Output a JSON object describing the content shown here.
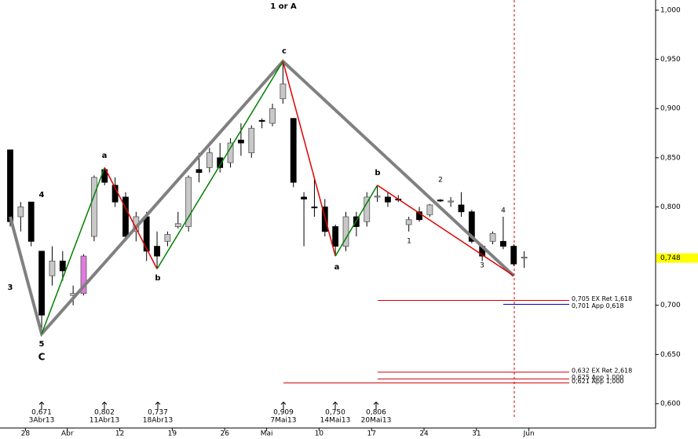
{
  "chart_data": {
    "type": "candlestick",
    "title": "1 or A",
    "categories": [
      null,
      "28",
      null,
      null,
      null,
      "Abr",
      null,
      null,
      null,
      null,
      "12",
      null,
      null,
      null,
      null,
      "19",
      null,
      null,
      null,
      null,
      "26",
      null,
      null,
      null,
      "Mai",
      null,
      null,
      null,
      null,
      "10",
      null,
      null,
      null,
      null,
      "17",
      null,
      null,
      null,
      null,
      "24",
      null,
      null,
      null,
      null,
      "31",
      null,
      null,
      null,
      null,
      "Jun"
    ],
    "open": [
      0.858,
      0.79,
      0.805,
      0.755,
      0.73,
      0.745,
      0.71,
      0.712,
      0.77,
      0.838,
      0.822,
      0.81,
      0.775,
      0.79,
      0.76,
      0.765,
      0.78,
      0.78,
      0.838,
      0.84,
      0.85,
      0.845,
      0.868,
      0.855,
      0.888,
      0.885,
      0.91,
      0.89,
      0.81,
      0.8,
      0.8,
      0.78,
      0.76,
      0.79,
      0.785,
      0.81,
      0.81,
      0.808,
      0.782,
      0.795,
      0.792,
      0.807,
      0.805,
      0.802,
      0.795,
      0.76,
      0.765,
      0.765,
      0.76,
      0.748
    ],
    "high": [
      0.858,
      0.805,
      0.805,
      0.755,
      0.76,
      0.755,
      0.72,
      0.752,
      0.832,
      0.84,
      0.83,
      0.815,
      0.795,
      0.795,
      0.775,
      0.775,
      0.795,
      0.832,
      0.855,
      0.86,
      0.865,
      0.87,
      0.885,
      0.883,
      0.89,
      0.905,
      0.948,
      0.89,
      0.815,
      0.83,
      0.808,
      0.782,
      0.795,
      0.795,
      0.815,
      0.822,
      0.815,
      0.812,
      0.79,
      0.8,
      0.803,
      0.808,
      0.81,
      0.815,
      0.797,
      0.762,
      0.775,
      0.79,
      0.762,
      0.755
    ],
    "low": [
      0.78,
      0.775,
      0.76,
      0.671,
      0.72,
      0.725,
      0.7,
      0.71,
      0.765,
      0.822,
      0.8,
      0.765,
      0.765,
      0.745,
      0.737,
      0.76,
      0.778,
      0.775,
      0.825,
      0.835,
      0.835,
      0.84,
      0.852,
      0.85,
      0.88,
      0.882,
      0.905,
      0.82,
      0.76,
      0.79,
      0.77,
      0.75,
      0.755,
      0.77,
      0.78,
      0.805,
      0.8,
      0.805,
      0.775,
      0.785,
      0.79,
      0.805,
      0.8,
      0.79,
      0.763,
      0.745,
      0.762,
      0.757,
      0.74,
      0.738
    ],
    "close": [
      0.785,
      0.8,
      0.765,
      0.69,
      0.745,
      0.735,
      0.712,
      0.75,
      0.83,
      0.825,
      0.805,
      0.77,
      0.79,
      0.755,
      0.75,
      0.772,
      0.783,
      0.83,
      0.835,
      0.855,
      0.84,
      0.865,
      0.865,
      0.88,
      0.887,
      0.9,
      0.925,
      0.825,
      0.808,
      0.799,
      0.775,
      0.76,
      0.79,
      0.78,
      0.81,
      0.811,
      0.805,
      0.807,
      0.787,
      0.787,
      0.802,
      0.806,
      0.806,
      0.795,
      0.765,
      0.75,
      0.773,
      0.76,
      0.742,
      0.749
    ],
    "colors": {
      "up": "#c8c8c8",
      "down": "#000000"
    },
    "highlight": {
      "index": 7,
      "color": "#e07ae0"
    },
    "ylim": [
      0.58,
      1.0
    ],
    "yticks": [
      {
        "value": 1.0,
        "label": "1,000"
      },
      {
        "value": 0.95,
        "label": "0,950"
      },
      {
        "value": 0.9,
        "label": "0,900"
      },
      {
        "value": 0.85,
        "label": "0,850"
      },
      {
        "value": 0.8,
        "label": "0,800"
      },
      {
        "value": 0.7,
        "label": "0,700"
      },
      {
        "value": 0.65,
        "label": "0,650"
      },
      {
        "value": 0.6,
        "label": "0,600"
      }
    ],
    "last_price": {
      "value": 0.748,
      "label": "0,748",
      "color": "#ffff00"
    },
    "waves": [
      {
        "color": "#808080",
        "points": [
          [
            0,
            0.79
          ],
          [
            3,
            0.671
          ],
          [
            26,
            0.948
          ],
          [
            48,
            0.73
          ]
        ]
      },
      {
        "color": "#008000",
        "points": [
          [
            3,
            0.671
          ],
          [
            9,
            0.84
          ]
        ]
      },
      {
        "color": "#e00000",
        "points": [
          [
            9,
            0.84
          ],
          [
            14,
            0.737
          ]
        ]
      },
      {
        "color": "#008000",
        "points": [
          [
            14,
            0.737
          ],
          [
            26,
            0.948
          ]
        ]
      },
      {
        "color": "#e00000",
        "points": [
          [
            26,
            0.948
          ],
          [
            31,
            0.75
          ]
        ]
      },
      {
        "color": "#008000",
        "points": [
          [
            31,
            0.75
          ],
          [
            35,
            0.822
          ]
        ]
      },
      {
        "color": "#e00000",
        "points": [
          [
            35,
            0.822
          ],
          [
            48,
            0.73
          ]
        ]
      }
    ],
    "wave_labels": [
      "3",
      "4",
      "5",
      "C",
      "a",
      "b",
      "c",
      "a",
      "b",
      "1",
      "2",
      "3",
      "4"
    ],
    "markers": [
      {
        "value": "0,671",
        "date": "3Abr13"
      },
      {
        "value": "0,802",
        "date": "11Abr13"
      },
      {
        "value": "0,737",
        "date": "18Abr13"
      },
      {
        "value": "0,909",
        "date": "7Mai13"
      },
      {
        "value": "0,750",
        "date": "14Mai13"
      },
      {
        "value": "0,806",
        "date": "20Mai13"
      }
    ],
    "levels": [
      {
        "value": 0.705,
        "label": "0,705 EX Ret 1,618",
        "color": "#d00000"
      },
      {
        "value": 0.701,
        "label": "0,701 App 0,618",
        "color": "#0000c0"
      },
      {
        "value": 0.632,
        "label": "0,632 EX Ret 2,618",
        "color": "#d00000"
      },
      {
        "value": 0.625,
        "label": "0,625 App 1,000",
        "color": "#d00000"
      },
      {
        "value": 0.621,
        "label": "0,621 App 1,000",
        "color": "#d00000"
      }
    ]
  }
}
